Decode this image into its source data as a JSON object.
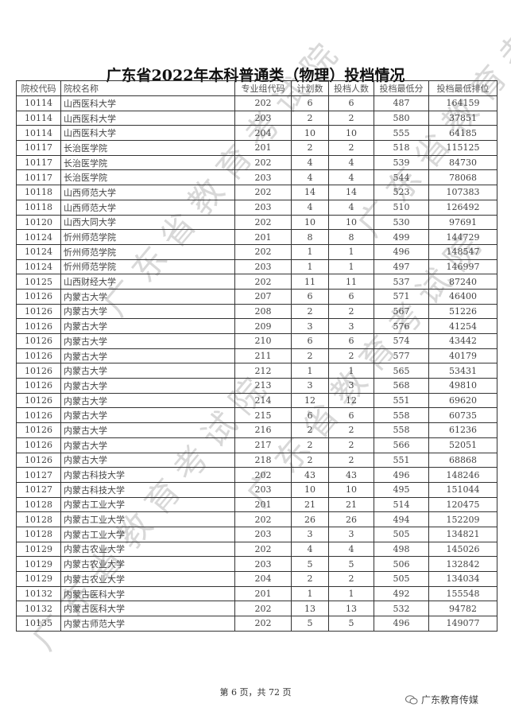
{
  "title": "广东省2022年本科普通类（物理）投档情况",
  "watermark": "广东省教育考试院",
  "columns": [
    "院校代码",
    "院校名称",
    "专业组代码",
    "计划数",
    "投档人数",
    "投档最低分",
    "投档最低排位"
  ],
  "rows": [
    [
      "10114",
      "山西医科大学",
      "202",
      "6",
      "6",
      "487",
      "164159"
    ],
    [
      "10114",
      "山西医科大学",
      "203",
      "2",
      "2",
      "580",
      "37851"
    ],
    [
      "10114",
      "山西医科大学",
      "204",
      "10",
      "10",
      "555",
      "64185"
    ],
    [
      "10117",
      "长治医学院",
      "201",
      "2",
      "2",
      "518",
      "115125"
    ],
    [
      "10117",
      "长治医学院",
      "202",
      "4",
      "4",
      "539",
      "84730"
    ],
    [
      "10117",
      "长治医学院",
      "203",
      "4",
      "4",
      "544",
      "78068"
    ],
    [
      "10118",
      "山西师范大学",
      "202",
      "14",
      "14",
      "523",
      "107383"
    ],
    [
      "10118",
      "山西师范大学",
      "203",
      "4",
      "4",
      "510",
      "126492"
    ],
    [
      "10120",
      "山西大同大学",
      "202",
      "10",
      "10",
      "530",
      "97691"
    ],
    [
      "10124",
      "忻州师范学院",
      "201",
      "8",
      "8",
      "499",
      "144729"
    ],
    [
      "10124",
      "忻州师范学院",
      "202",
      "1",
      "1",
      "496",
      "148547"
    ],
    [
      "10124",
      "忻州师范学院",
      "203",
      "1",
      "1",
      "497",
      "146997"
    ],
    [
      "10125",
      "山西财经大学",
      "202",
      "11",
      "11",
      "537",
      "87240"
    ],
    [
      "10126",
      "内蒙古大学",
      "207",
      "6",
      "6",
      "571",
      "46400"
    ],
    [
      "10126",
      "内蒙古大学",
      "208",
      "2",
      "2",
      "567",
      "51226"
    ],
    [
      "10126",
      "内蒙古大学",
      "209",
      "3",
      "3",
      "576",
      "41254"
    ],
    [
      "10126",
      "内蒙古大学",
      "210",
      "6",
      "6",
      "574",
      "43442"
    ],
    [
      "10126",
      "内蒙古大学",
      "211",
      "2",
      "2",
      "577",
      "40179"
    ],
    [
      "10126",
      "内蒙古大学",
      "212",
      "1",
      "1",
      "565",
      "53431"
    ],
    [
      "10126",
      "内蒙古大学",
      "213",
      "3",
      "3",
      "568",
      "49810"
    ],
    [
      "10126",
      "内蒙古大学",
      "214",
      "12",
      "12",
      "551",
      "69620"
    ],
    [
      "10126",
      "内蒙古大学",
      "215",
      "6",
      "6",
      "558",
      "60735"
    ],
    [
      "10126",
      "内蒙古大学",
      "216",
      "2",
      "2",
      "558",
      "61236"
    ],
    [
      "10126",
      "内蒙古大学",
      "217",
      "2",
      "2",
      "566",
      "52051"
    ],
    [
      "10126",
      "内蒙古大学",
      "218",
      "2",
      "2",
      "551",
      "68868"
    ],
    [
      "10127",
      "内蒙古科技大学",
      "202",
      "43",
      "43",
      "496",
      "148246"
    ],
    [
      "10127",
      "内蒙古科技大学",
      "203",
      "10",
      "10",
      "495",
      "151044"
    ],
    [
      "10128",
      "内蒙古工业大学",
      "201",
      "21",
      "21",
      "514",
      "120475"
    ],
    [
      "10128",
      "内蒙古工业大学",
      "202",
      "26",
      "26",
      "494",
      "152209"
    ],
    [
      "10128",
      "内蒙古工业大学",
      "203",
      "3",
      "3",
      "505",
      "134821"
    ],
    [
      "10129",
      "内蒙古农业大学",
      "202",
      "4",
      "4",
      "498",
      "145026"
    ],
    [
      "10129",
      "内蒙古农业大学",
      "203",
      "5",
      "5",
      "506",
      "132842"
    ],
    [
      "10129",
      "内蒙古农业大学",
      "204",
      "2",
      "2",
      "505",
      "134034"
    ],
    [
      "10132",
      "内蒙古医科大学",
      "201",
      "1",
      "1",
      "492",
      "155548"
    ],
    [
      "10132",
      "内蒙古医科大学",
      "202",
      "13",
      "13",
      "532",
      "94782"
    ],
    [
      "10135",
      "内蒙古师范大学",
      "202",
      "5",
      "5",
      "496",
      "149077"
    ]
  ],
  "footer": {
    "page_text": "第 6 页，共 72 页",
    "brand": "广东教育传媒",
    "brand_icon": "wechat-icon"
  }
}
